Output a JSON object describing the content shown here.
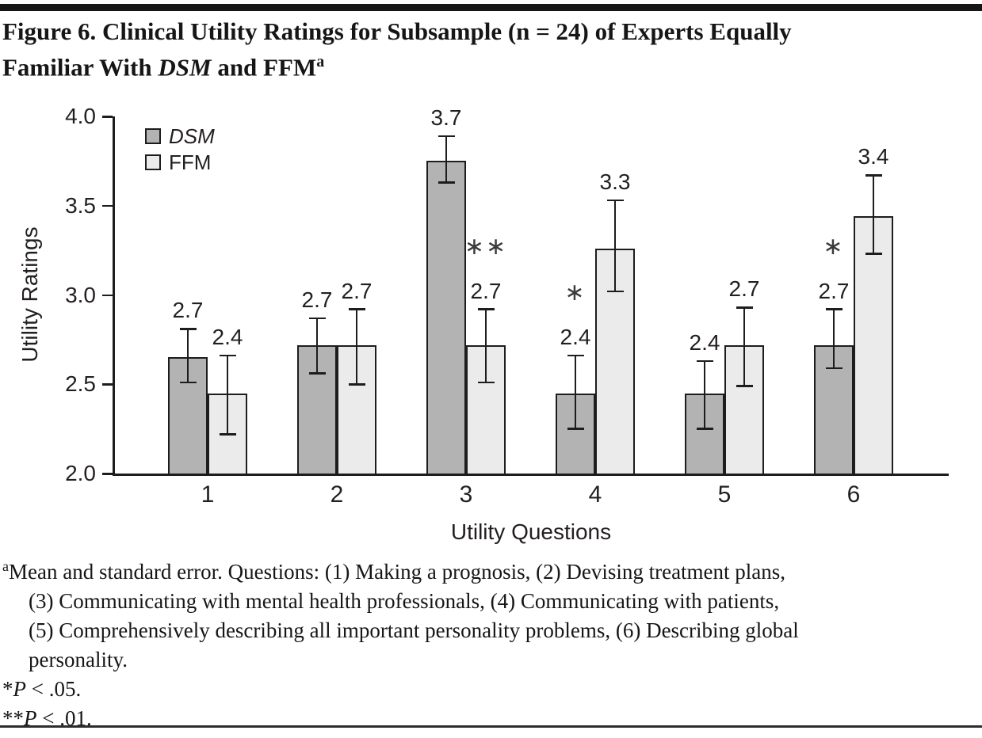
{
  "title": {
    "line1": "Figure 6. Clinical Utility Ratings for Subsample (n = 24) of Experts Equally",
    "line2_prefix": "Familiar With ",
    "line2_italic": "DSM",
    "line2_suffix": " and FFM",
    "superscript": "a"
  },
  "chart_data": {
    "type": "bar",
    "xlabel": "Utility Questions",
    "ylabel": "Utility Ratings",
    "ylim": [
      2.0,
      4.0
    ],
    "yticks": [
      "2.0",
      "2.5",
      "3.0",
      "3.5",
      "4.0"
    ],
    "grid": false,
    "categories": [
      "1",
      "2",
      "3",
      "4",
      "5",
      "6"
    ],
    "series": [
      {
        "name": "DSM",
        "fill": "#b3b3b3",
        "values": [
          2.65,
          2.72,
          3.75,
          2.45,
          2.45,
          2.72
        ],
        "labels": [
          "2.7",
          "2.7",
          "3.7",
          "2.4",
          "2.4",
          "2.7"
        ],
        "err_lo": [
          2.51,
          2.56,
          3.63,
          2.25,
          2.25,
          2.59
        ],
        "err_hi": [
          2.81,
          2.87,
          3.89,
          2.66,
          2.63,
          2.92
        ],
        "sig": [
          "",
          "",
          "",
          "*",
          "",
          "*"
        ]
      },
      {
        "name": "FFM",
        "fill": "#ebebeb",
        "values": [
          2.45,
          2.72,
          2.72,
          3.26,
          2.72,
          3.44
        ],
        "labels": [
          "2.4",
          "2.7",
          "2.7",
          "3.3",
          "2.7",
          "3.4"
        ],
        "err_lo": [
          2.22,
          2.5,
          2.51,
          3.02,
          2.49,
          3.23
        ],
        "err_hi": [
          2.66,
          2.92,
          2.92,
          3.53,
          2.93,
          3.67
        ],
        "sig": [
          "",
          "",
          "**",
          "",
          "",
          ""
        ]
      }
    ],
    "legend": {
      "position": "top-left-inside",
      "items": [
        {
          "label": "DSM",
          "italic": true
        },
        {
          "label": "FFM",
          "italic": false
        }
      ]
    },
    "error_bars": "standard error",
    "significance_note": "asterisks mark significant DSM vs FFM differences"
  },
  "footnote": {
    "marker": "a",
    "line1": "Mean and standard error. Questions: (1) Making a prognosis, (2) Devising treatment plans,",
    "line2": "(3) Communicating with mental health professionals, (4) Communicating with patients,",
    "line3": "(5) Comprehensively describing all important personality problems, (6) Describing global",
    "line4": "personality.",
    "sig1_star": "*",
    "sig1_p": "P",
    "sig1_rest": " < .05.",
    "sig2_star": "**",
    "sig2_p": "P",
    "sig2_rest": " < .01."
  },
  "colors": {
    "dsm_fill": "#b3b3b3",
    "ffm_fill": "#ebebeb",
    "stroke": "#1d1d1b",
    "text": "#231f20"
  }
}
